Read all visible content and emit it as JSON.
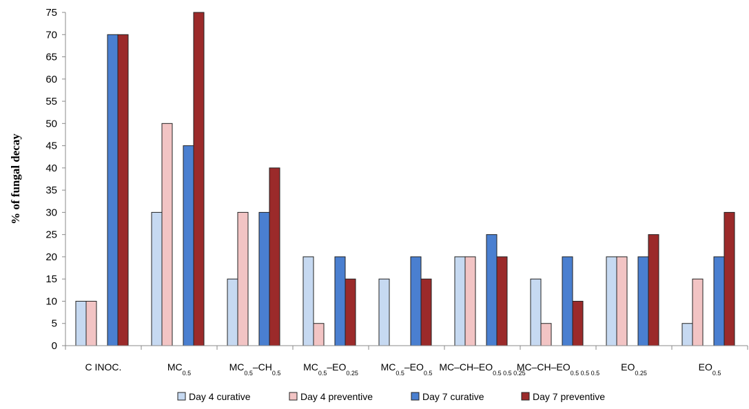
{
  "chart_data": {
    "type": "bar",
    "ylabel": "% of fungal decay",
    "xlabel": "",
    "ylim": [
      0,
      75
    ],
    "yticks": [
      0,
      5,
      10,
      15,
      20,
      25,
      30,
      35,
      40,
      45,
      50,
      55,
      60,
      65,
      70,
      75
    ],
    "grid": false,
    "legend_position": "bottom",
    "categories": [
      {
        "parts": [
          {
            "t": "C INOC."
          }
        ]
      },
      {
        "parts": [
          {
            "t": "MC"
          },
          {
            "t": "0.5",
            "sub": true
          }
        ]
      },
      {
        "parts": [
          {
            "t": "MC"
          },
          {
            "t": "0.5",
            "sub": true
          },
          {
            "t": "–CH"
          },
          {
            "t": "0.5",
            "sub": true
          }
        ]
      },
      {
        "parts": [
          {
            "t": "MC"
          },
          {
            "t": "0.5",
            "sub": true
          },
          {
            "t": "–EO"
          },
          {
            "t": "0.25",
            "sub": true
          }
        ]
      },
      {
        "parts": [
          {
            "t": "MC"
          },
          {
            "t": "0.5",
            "sub": true
          },
          {
            "t": "–EO"
          },
          {
            "t": "0.5",
            "sub": true
          }
        ]
      },
      {
        "parts": [
          {
            "t": "MC–CH–EO"
          },
          {
            "t": "0.5  0.5  0.25",
            "sub": true
          }
        ]
      },
      {
        "parts": [
          {
            "t": "MC–CH–EO"
          },
          {
            "t": "0.5  0.5  0.5",
            "sub": true
          }
        ]
      },
      {
        "parts": [
          {
            "t": "EO"
          },
          {
            "t": "0.25",
            "sub": true
          }
        ]
      },
      {
        "parts": [
          {
            "t": "EO"
          },
          {
            "t": "0.5",
            "sub": true
          }
        ]
      }
    ],
    "series": [
      {
        "name": "Day 4 curative",
        "color": "#c6d9f1",
        "values": [
          10,
          30,
          15,
          20,
          15,
          20,
          15,
          20,
          5
        ]
      },
      {
        "name": "Day 4 preventive",
        "color": "#f2c4c4",
        "values": [
          10,
          50,
          30,
          5,
          0,
          20,
          5,
          20,
          15
        ]
      },
      {
        "name": "Day 7 curative",
        "color": "#4a7fd0",
        "values": [
          70,
          45,
          30,
          20,
          20,
          25,
          20,
          20,
          20
        ]
      },
      {
        "name": "Day 7 preventive",
        "color": "#9b2a2a",
        "values": [
          70,
          75,
          40,
          15,
          15,
          20,
          10,
          25,
          30
        ]
      }
    ]
  }
}
